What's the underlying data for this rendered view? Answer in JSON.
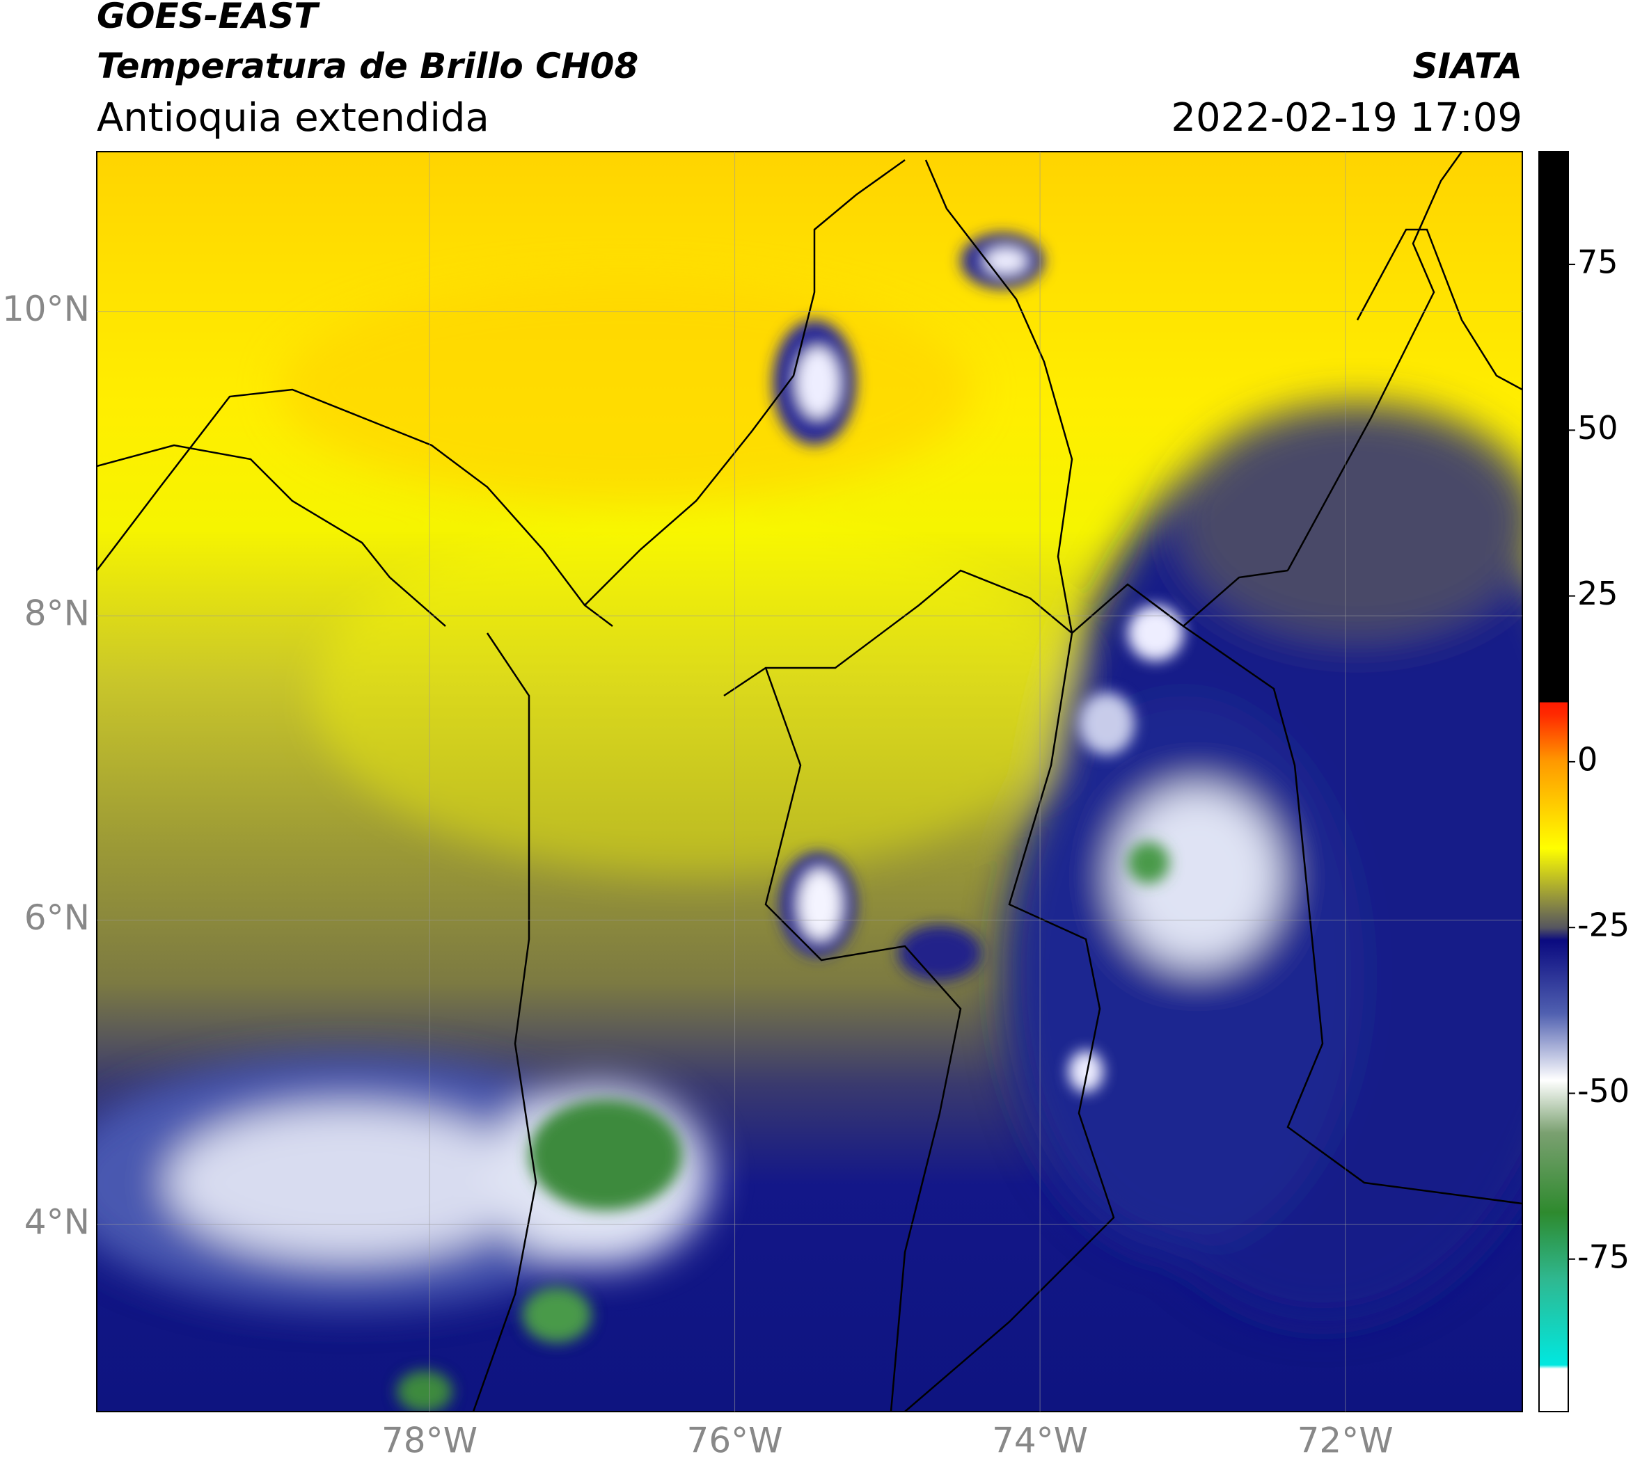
{
  "header": {
    "title": "GOES-EAST",
    "subtitle": "Temperatura de Brillo CH08",
    "region": "Antioquia extendida",
    "source": "SIATA",
    "datetime": "2022-02-19 17:09"
  },
  "map": {
    "xlim": [
      -80.18,
      -70.84
    ],
    "ylim": [
      2.77,
      11.05
    ],
    "xticks": [
      {
        "value": -78,
        "label": "78°W"
      },
      {
        "value": -76,
        "label": "76°W"
      },
      {
        "value": -74,
        "label": "74°W"
      },
      {
        "value": -72,
        "label": "72°W"
      }
    ],
    "yticks": [
      {
        "value": 4,
        "label": "4°N"
      },
      {
        "value": 6,
        "label": "6°N"
      },
      {
        "value": 8,
        "label": "8°N"
      },
      {
        "value": 10,
        "label": "10°N"
      }
    ],
    "grid": true
  },
  "colorbar": {
    "lim": [
      -98,
      92
    ],
    "ticks": [
      -75,
      -50,
      -25,
      0,
      25,
      50,
      75
    ]
  }
}
